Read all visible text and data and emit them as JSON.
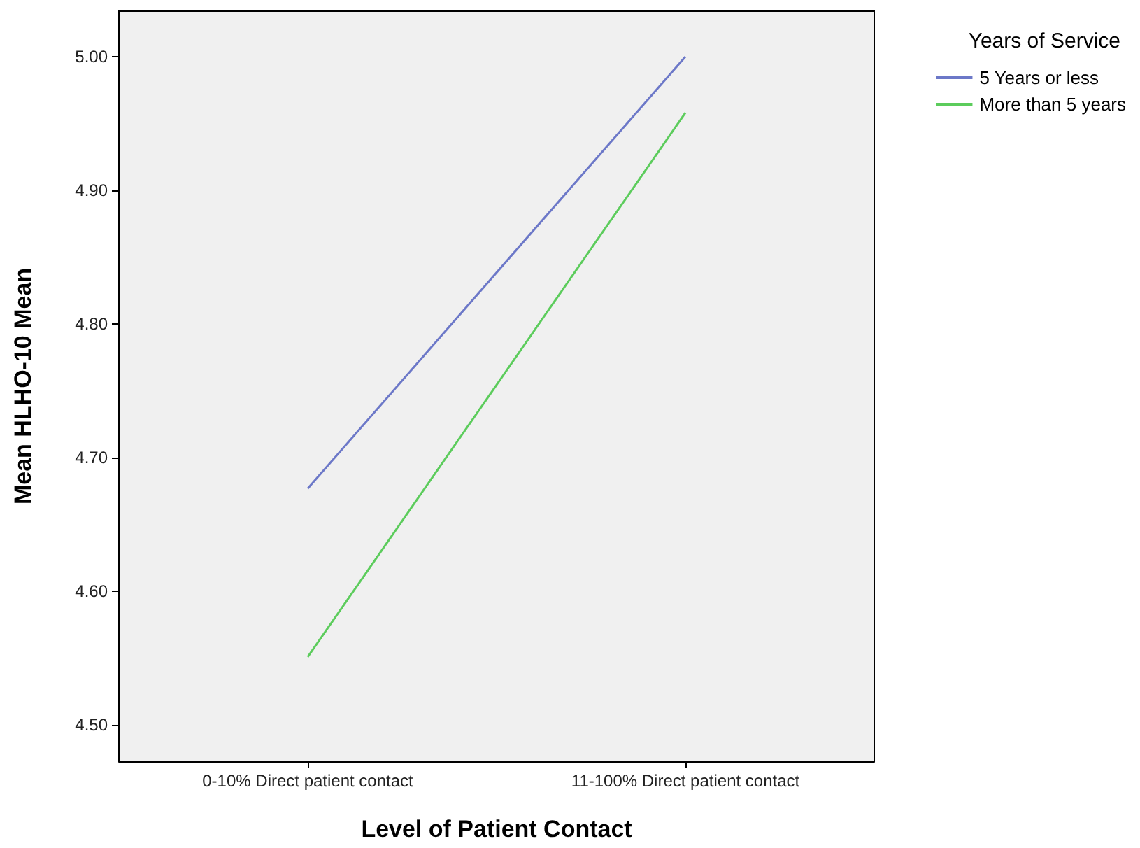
{
  "chart_data": {
    "type": "line",
    "xlabel": "Level of Patient Contact",
    "ylabel": "Mean HLHO-10 Mean",
    "legend_title": "Years of Service",
    "categories": [
      "0-10% Direct patient contact",
      "11-100% Direct patient contact"
    ],
    "series": [
      {
        "name": "5 Years or less",
        "color": "#6c78c8",
        "values": [
          4.677,
          5.0
        ]
      },
      {
        "name": "More than 5 years",
        "color": "#5ccc5c",
        "values": [
          4.551,
          4.958
        ]
      }
    ],
    "ylim": [
      4.473,
      5.034
    ],
    "yticks": [
      {
        "value": 4.5,
        "label": "4.50"
      },
      {
        "value": 4.6,
        "label": "4.60"
      },
      {
        "value": 4.7,
        "label": "4.70"
      },
      {
        "value": 4.8,
        "label": "4.80"
      },
      {
        "value": 4.9,
        "label": "4.90"
      },
      {
        "value": 5.0,
        "label": "5.00"
      }
    ],
    "grid": false,
    "legend": "top right",
    "marker": "none",
    "line_style": "solid"
  }
}
